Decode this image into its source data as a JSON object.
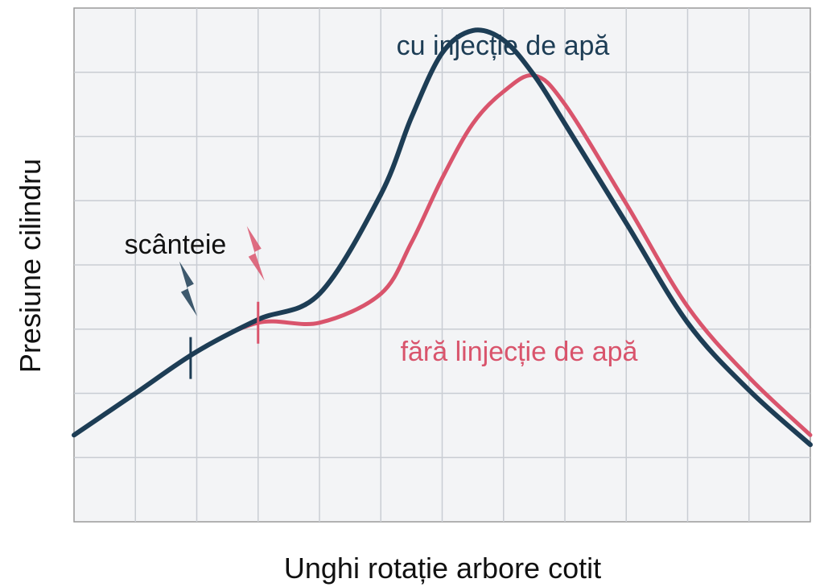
{
  "chart_data": {
    "type": "line",
    "title": "",
    "xlabel": "Unghi rotație arbore cotit",
    "ylabel": "Presiune cilindru",
    "xlim": [
      0,
      12
    ],
    "ylim": [
      0,
      8
    ],
    "grid": true,
    "series": [
      {
        "name": "cu injecție de apă",
        "color": "#1d3d55",
        "x": [
          0,
          1,
          2,
          3,
          4,
          5,
          5.5,
          6,
          6.5,
          7,
          7.5,
          8,
          9,
          10,
          11,
          12
        ],
        "y": [
          1.35,
          2.0,
          2.65,
          3.15,
          3.55,
          5.1,
          6.3,
          7.3,
          7.65,
          7.5,
          6.95,
          6.2,
          4.65,
          3.1,
          2.05,
          1.2
        ]
      },
      {
        "name": "fără linjecție de apă",
        "color": "#d9546c",
        "x": [
          0,
          1,
          2,
          3,
          4,
          5,
          5.5,
          6,
          6.5,
          7,
          7.5,
          8,
          9,
          10,
          11,
          12
        ],
        "y": [
          1.35,
          2.0,
          2.65,
          3.1,
          3.1,
          3.55,
          4.35,
          5.35,
          6.2,
          6.7,
          6.95,
          6.5,
          4.95,
          3.35,
          2.25,
          1.35
        ]
      }
    ],
    "annotations": [
      {
        "text": "scânteie",
        "series_index": 0,
        "x": 1.9,
        "y": 2.55
      },
      {
        "text": "",
        "series_index": 1,
        "x": 3.0,
        "y": 3.1
      }
    ]
  }
}
